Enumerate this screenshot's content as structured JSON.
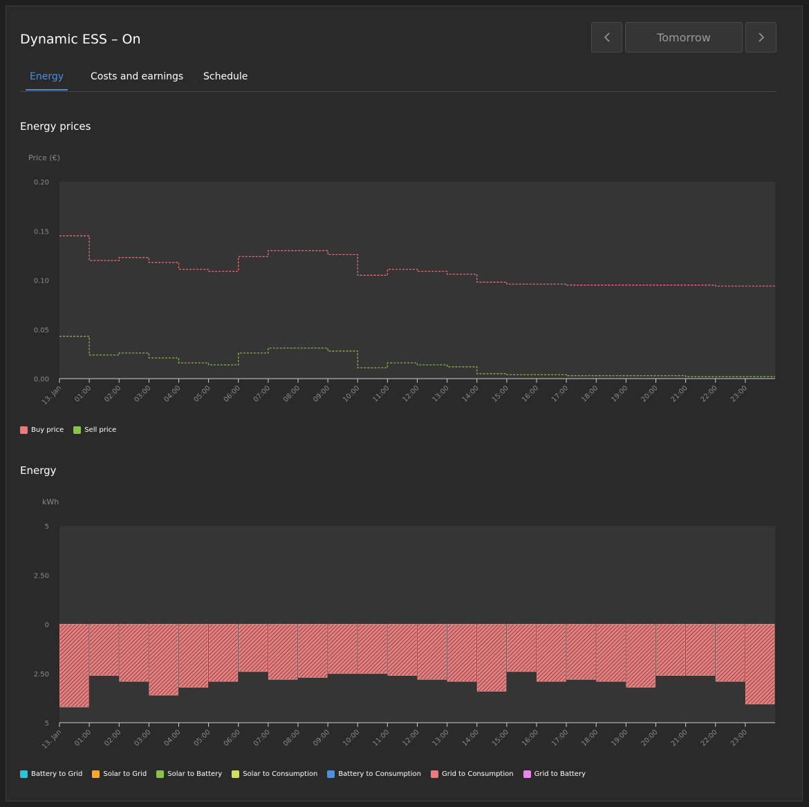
{
  "header": {
    "title": "Dynamic ESS – On"
  },
  "day_nav": {
    "prev_icon": "chevron-left-icon",
    "day_label": "Tomorrow",
    "next_icon": "chevron-right-icon"
  },
  "tabs": [
    {
      "label": "Energy",
      "active": true
    },
    {
      "label": "Costs and earnings",
      "active": false
    },
    {
      "label": "Schedule",
      "active": false
    }
  ],
  "colors": {
    "accent": "#4a90e2",
    "buy": "#f07878",
    "sell": "#8bc34a",
    "battery_to_grid": "#26c6da",
    "solar_to_grid": "#ffa726",
    "solar_to_battery": "#8bc34a",
    "solar_to_consumption": "#d4e157",
    "battery_to_consumption": "#4a90e2",
    "grid_to_consumption": "#f07878",
    "grid_to_battery": "#ee82ee"
  },
  "x_ticks": [
    "13. Jan",
    "01:00",
    "02:00",
    "03:00",
    "04:00",
    "05:00",
    "06:00",
    "07:00",
    "08:00",
    "09:00",
    "10:00",
    "11:00",
    "12:00",
    "13:00",
    "14:00",
    "15:00",
    "16:00",
    "17:00",
    "18:00",
    "19:00",
    "20:00",
    "21:00",
    "22:00",
    "23:00"
  ],
  "prices": {
    "section_title": "Energy prices",
    "y_axis_label": "Price (€)",
    "y_ticks": [
      "0.20",
      "0.15",
      "0.10",
      "0.05",
      "0.00"
    ],
    "legend": [
      {
        "label": "Buy price",
        "color": "#f07878"
      },
      {
        "label": "Sell price",
        "color": "#8bc34a"
      }
    ]
  },
  "energy": {
    "section_title": "Energy",
    "y_axis_label": "kWh",
    "y_ticks": [
      "5",
      "2.50",
      "0",
      "2.50",
      "5"
    ],
    "legend": [
      {
        "label": "Battery to Grid",
        "color": "#26c6da"
      },
      {
        "label": "Solar to Grid",
        "color": "#ffa726"
      },
      {
        "label": "Solar to Battery",
        "color": "#8bc34a"
      },
      {
        "label": "Solar to Consumption",
        "color": "#d4e157"
      },
      {
        "label": "Battery to Consumption",
        "color": "#4a90e2"
      },
      {
        "label": "Grid to Consumption",
        "color": "#f07878"
      },
      {
        "label": "Grid to Battery",
        "color": "#ee82ee"
      }
    ]
  },
  "chart_data": [
    {
      "type": "line",
      "title": "Energy prices",
      "ylabel": "Price (€)",
      "ylim": [
        0,
        0.2
      ],
      "x": [
        "13. Jan",
        "01:00",
        "02:00",
        "03:00",
        "04:00",
        "05:00",
        "06:00",
        "07:00",
        "08:00",
        "09:00",
        "10:00",
        "11:00",
        "12:00",
        "13:00",
        "14:00",
        "15:00",
        "16:00",
        "17:00",
        "18:00",
        "19:00",
        "20:00",
        "21:00",
        "22:00",
        "23:00"
      ],
      "series": [
        {
          "name": "Buy price",
          "values": [
            0.145,
            0.12,
            0.123,
            0.118,
            0.111,
            0.109,
            0.124,
            0.13,
            0.13,
            0.126,
            0.105,
            0.111,
            0.109,
            0.106,
            0.098,
            0.096,
            0.096,
            0.095,
            0.095,
            0.095,
            0.095,
            0.095,
            0.094,
            0.094
          ]
        },
        {
          "name": "Sell price",
          "values": [
            0.043,
            0.024,
            0.026,
            0.021,
            0.016,
            0.014,
            0.026,
            0.031,
            0.031,
            0.028,
            0.011,
            0.016,
            0.014,
            0.012,
            0.005,
            0.004,
            0.004,
            0.003,
            0.003,
            0.003,
            0.003,
            0.002,
            0.002,
            0.002
          ]
        }
      ],
      "grid": true,
      "legend": "bottom-left"
    },
    {
      "type": "bar",
      "title": "Energy",
      "ylabel": "kWh",
      "ylim": [
        -5,
        5
      ],
      "categories": [
        "13. Jan",
        "01:00",
        "02:00",
        "03:00",
        "04:00",
        "05:00",
        "06:00",
        "07:00",
        "08:00",
        "09:00",
        "10:00",
        "11:00",
        "12:00",
        "13:00",
        "14:00",
        "15:00",
        "16:00",
        "17:00",
        "18:00",
        "19:00",
        "20:00",
        "21:00",
        "22:00",
        "23:00"
      ],
      "series": [
        {
          "name": "Grid to Consumption",
          "values": [
            -4.2,
            -2.6,
            -2.9,
            -3.6,
            -3.2,
            -2.9,
            -2.4,
            -2.8,
            -2.7,
            -2.5,
            -2.5,
            -2.6,
            -2.8,
            -2.9,
            -3.4,
            -2.4,
            -2.9,
            -2.8,
            -2.9,
            -3.2,
            -2.6,
            -2.6,
            -2.9,
            -4.05
          ]
        }
      ],
      "legend": "bottom-left"
    }
  ]
}
